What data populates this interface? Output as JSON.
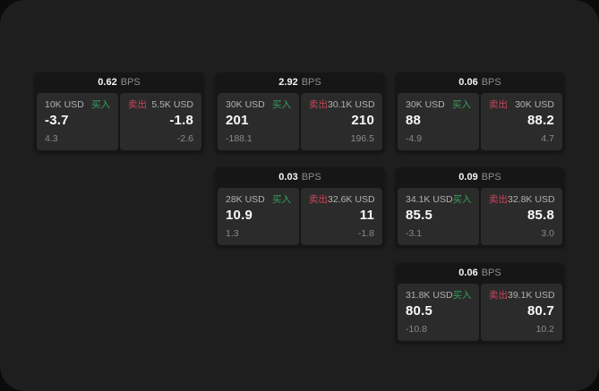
{
  "labels": {
    "bps": "BPS",
    "buy": "买入",
    "sell": "卖出"
  },
  "colors": {
    "page_bg": "#1e1e1e",
    "card_bg": "#161616",
    "panel_bg": "#2b2b2b",
    "buy_green": "#36a05c",
    "sell_red": "#c8455c"
  },
  "cards": [
    {
      "bps": "0.62",
      "buy": {
        "amount": "10K USD",
        "main": "-3.7",
        "sub": "4.3"
      },
      "sell": {
        "amount": "5.5K USD",
        "main": "-1.8",
        "sub": "-2.6"
      }
    },
    {
      "bps": "2.92",
      "buy": {
        "amount": "30K USD",
        "main": "201",
        "sub": "-188.1"
      },
      "sell": {
        "amount": "30.1K USD",
        "main": "210",
        "sub": "196.5"
      }
    },
    {
      "bps": "0.06",
      "buy": {
        "amount": "30K USD",
        "main": "88",
        "sub": "-4.9"
      },
      "sell": {
        "amount": "30K USD",
        "main": "88.2",
        "sub": "4.7"
      }
    },
    {
      "bps": "0.03",
      "buy": {
        "amount": "28K USD",
        "main": "10.9",
        "sub": "1.3"
      },
      "sell": {
        "amount": "32.6K USD",
        "main": "11",
        "sub": "-1.8"
      }
    },
    {
      "bps": "0.09",
      "buy": {
        "amount": "34.1K USD",
        "main": "85.5",
        "sub": "-3.1"
      },
      "sell": {
        "amount": "32.8K USD",
        "main": "85.8",
        "sub": "3.0"
      }
    },
    {
      "bps": "0.06",
      "buy": {
        "amount": "31.8K USD",
        "main": "80.5",
        "sub": "-10.8"
      },
      "sell": {
        "amount": "39.1K USD",
        "main": "80.7",
        "sub": "10.2"
      }
    }
  ]
}
